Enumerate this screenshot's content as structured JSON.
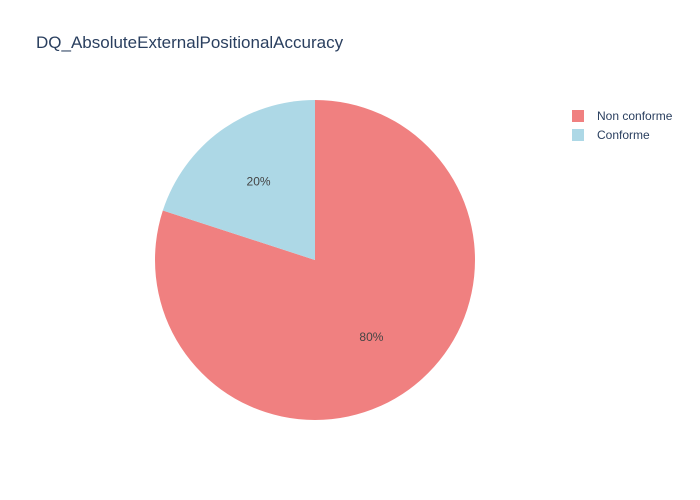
{
  "chart_data": {
    "type": "pie",
    "title": "DQ_AbsoluteExternalPositionalAccuracy",
    "categories": [
      "Non conforme",
      "Conforme"
    ],
    "values": [
      80,
      20
    ],
    "value_labels": [
      "80%",
      "20%"
    ],
    "colors": [
      "#f08080",
      "#add8e6"
    ],
    "legend_position": "top-right",
    "start_angle_deg": 0,
    "direction": "clockwise"
  }
}
